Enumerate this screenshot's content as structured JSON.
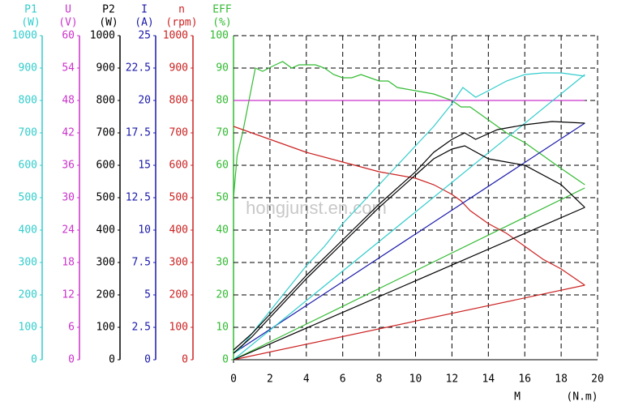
{
  "chart_data": {
    "type": "line",
    "watermark": "hongjunst.en.com",
    "x_label": "M",
    "x_unit": "(N.m)",
    "xlim": [
      0,
      20
    ],
    "xticks": [
      0,
      2,
      4,
      6,
      8,
      10,
      12,
      14,
      16,
      18,
      20
    ],
    "grid": true,
    "y_axes": [
      {
        "label": "P1",
        "unit": "(W)",
        "color": "#33cccc",
        "ylim": [
          0,
          1000
        ],
        "yticks": [
          0,
          100,
          200,
          300,
          400,
          500,
          600,
          700,
          800,
          900,
          1000
        ]
      },
      {
        "label": "U",
        "unit": "(V)",
        "color": "#cc33cc",
        "ylim": [
          0,
          60
        ],
        "yticks": [
          0,
          6,
          12,
          18,
          24,
          30,
          36,
          42,
          48,
          54,
          60
        ]
      },
      {
        "label": "P2",
        "unit": "(W)",
        "color": "#000000",
        "ylim": [
          0,
          1000
        ],
        "yticks": [
          0,
          100,
          200,
          300,
          400,
          500,
          600,
          700,
          800,
          900,
          1000
        ]
      },
      {
        "label": "I",
        "unit": "(A)",
        "color": "#1a1aaa",
        "ylim": [
          0,
          25
        ],
        "yticks": [
          0,
          2.5,
          5,
          7.5,
          10,
          12.5,
          15,
          17.5,
          20,
          22.5,
          25
        ]
      },
      {
        "label": "n",
        "unit": "(rpm)",
        "color": "#cc2222",
        "ylim": [
          0,
          1000
        ],
        "yticks": [
          0,
          100,
          200,
          300,
          400,
          500,
          600,
          700,
          800,
          900,
          1000
        ]
      },
      {
        "label": "EFF",
        "unit": "(%)",
        "color": "#33bb33",
        "ylim": [
          0,
          100
        ],
        "yticks": [
          0,
          10,
          20,
          30,
          40,
          50,
          60,
          70,
          80,
          90,
          100
        ]
      }
    ],
    "series": [
      {
        "axis": "EFF",
        "color": "#33bb33",
        "x": [
          0,
          0.2,
          0.5,
          1.2,
          1.6,
          2.3,
          2.7,
          3.2,
          3.6,
          4.5,
          5,
          5.5,
          6,
          6.5,
          7,
          7.5,
          8,
          8.5,
          9,
          10,
          11,
          12,
          12.5,
          13,
          13.5,
          14,
          15,
          16,
          17,
          18,
          19.3
        ],
        "values": [
          50,
          63,
          70,
          90,
          89,
          91,
          92,
          90,
          91,
          91,
          90,
          88,
          87,
          87,
          88,
          87,
          86,
          86,
          84,
          83,
          82,
          80,
          78,
          78,
          76,
          74,
          70,
          67,
          63,
          59,
          54
        ]
      },
      {
        "axis": "EFF",
        "color": "#33bb33",
        "x": [
          0,
          19.3
        ],
        "values": [
          0,
          53
        ]
      },
      {
        "axis": "n",
        "color": "#cc2222",
        "x": [
          0,
          2,
          4,
          6,
          8,
          10,
          11,
          12,
          12.5,
          13,
          14,
          15,
          16,
          17,
          18,
          19.3
        ],
        "values": [
          720,
          680,
          640,
          610,
          580,
          560,
          540,
          510,
          490,
          460,
          420,
          390,
          350,
          310,
          280,
          230
        ]
      },
      {
        "axis": "n",
        "color": "#cc2222",
        "x": [
          0,
          19.3
        ],
        "values": [
          0,
          230
        ]
      },
      {
        "axis": "U",
        "color": "#cc33cc",
        "x": [
          0,
          19.3
        ],
        "values": [
          48,
          48
        ]
      },
      {
        "axis": "I",
        "color": "#1a1aaa",
        "x": [
          0,
          19.3
        ],
        "values": [
          0.5,
          18.25
        ]
      },
      {
        "axis": "P1",
        "color": "#33cccc",
        "x": [
          0,
          0.3,
          1,
          2,
          3,
          4,
          5,
          6,
          7,
          8,
          9,
          10,
          11,
          12,
          12.6,
          13.3,
          14,
          15,
          16,
          17,
          18,
          19.3
        ],
        "values": [
          20,
          30,
          80,
          150,
          220,
          290,
          350,
          420,
          480,
          540,
          600,
          660,
          720,
          790,
          840,
          810,
          830,
          860,
          880,
          885,
          885,
          875
        ]
      },
      {
        "axis": "P1",
        "color": "#33cccc",
        "x": [
          0,
          19.3
        ],
        "values": [
          0,
          880
        ]
      },
      {
        "axis": "P2",
        "color": "#000000",
        "x": [
          0,
          1,
          2,
          4,
          6,
          8,
          10,
          11,
          12,
          12.7,
          13.3,
          14.5,
          16,
          17.5,
          19.3
        ],
        "values": [
          30,
          80,
          140,
          260,
          370,
          480,
          580,
          640,
          680,
          700,
          680,
          710,
          725,
          735,
          730
        ]
      },
      {
        "axis": "P2",
        "color": "#000000",
        "x": [
          0,
          1,
          2,
          4,
          6,
          8,
          10,
          11,
          12,
          12.7,
          14,
          16,
          18,
          19.3
        ],
        "values": [
          20,
          70,
          130,
          250,
          360,
          470,
          570,
          620,
          650,
          660,
          620,
          600,
          540,
          470
        ]
      },
      {
        "axis": "P2",
        "color": "#000000",
        "x": [
          0,
          19.3
        ],
        "values": [
          0,
          470
        ]
      }
    ]
  }
}
